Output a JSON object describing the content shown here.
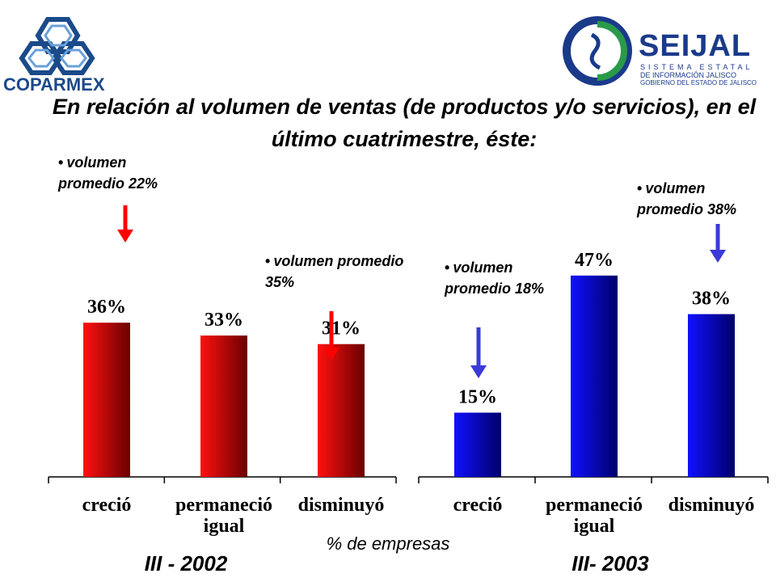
{
  "title": "En relación al volumen de ventas (de productos y/o servicios), en el último cuatrimestre, éste:",
  "logos": {
    "coparmex": "COPARMEX",
    "seijal_brand": "SEIJAL",
    "seijal_line1": "SISTEMA ESTATAL",
    "seijal_line2": "DE INFORMACIÓN JALISCO",
    "seijal_line3": "GOBIERNO DEL ESTADO DE JALISCO"
  },
  "notes": {
    "left_creci": "volumen promedio 22%",
    "left_dism": "volumen promedio 35%",
    "right_creci": "volumen promedio 18%",
    "right_dism": "volumen promedio 38%"
  },
  "axis_title": "% de empresas",
  "colors": {
    "red": "#ff1010",
    "dark_red": "#6a0000",
    "blue": "#1010ff",
    "dark_blue": "#00006a",
    "red_arrow": "#ff0000",
    "blue_arrow": "#3a3ad8"
  },
  "chart_data": [
    {
      "type": "bar",
      "period": "III - 2002",
      "categories": [
        "creció",
        "permaneció igual",
        "disminuyó"
      ],
      "values": [
        36,
        33,
        31
      ],
      "value_labels": [
        "36%",
        "33%",
        "31%"
      ],
      "color": "red"
    },
    {
      "type": "bar",
      "period": "III- 2003",
      "categories": [
        "creció",
        "permaneció igual",
        "disminuyó"
      ],
      "values": [
        15,
        47,
        38
      ],
      "value_labels": [
        "15%",
        "47%",
        "38%"
      ],
      "color": "blue"
    }
  ]
}
